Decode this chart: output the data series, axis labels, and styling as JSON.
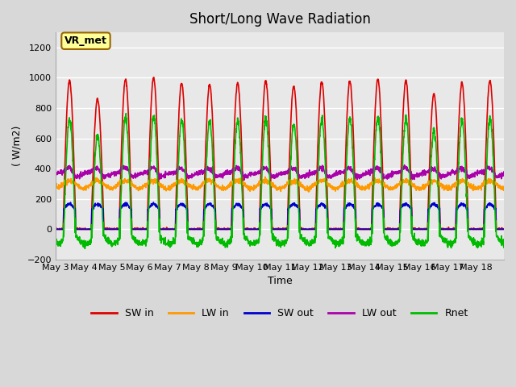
{
  "title": "Short/Long Wave Radiation",
  "xlabel": "Time",
  "ylabel": "( W/m2)",
  "ylim": [
    -200,
    1300
  ],
  "yticks": [
    -200,
    0,
    200,
    400,
    600,
    800,
    1000,
    1200
  ],
  "date_labels": [
    "May 3",
    "May 4",
    "May 5",
    "May 6",
    "May 7",
    "May 8",
    "May 9",
    "May 10",
    "May 11",
    "May 12",
    "May 13",
    "May 14",
    "May 15",
    "May 16",
    "May 17",
    "May 18"
  ],
  "colors": {
    "SW_in": "#dd0000",
    "LW_in": "#ff9900",
    "SW_out": "#0000cc",
    "LW_out": "#aa00aa",
    "Rnet": "#00bb00"
  },
  "legend_label": "VR_met",
  "n_days": 16,
  "points_per_day": 144,
  "sw_peaks": [
    980,
    860,
    990,
    1000,
    965,
    955,
    965,
    980,
    945,
    975,
    975,
    990,
    980,
    895,
    965,
    980
  ]
}
